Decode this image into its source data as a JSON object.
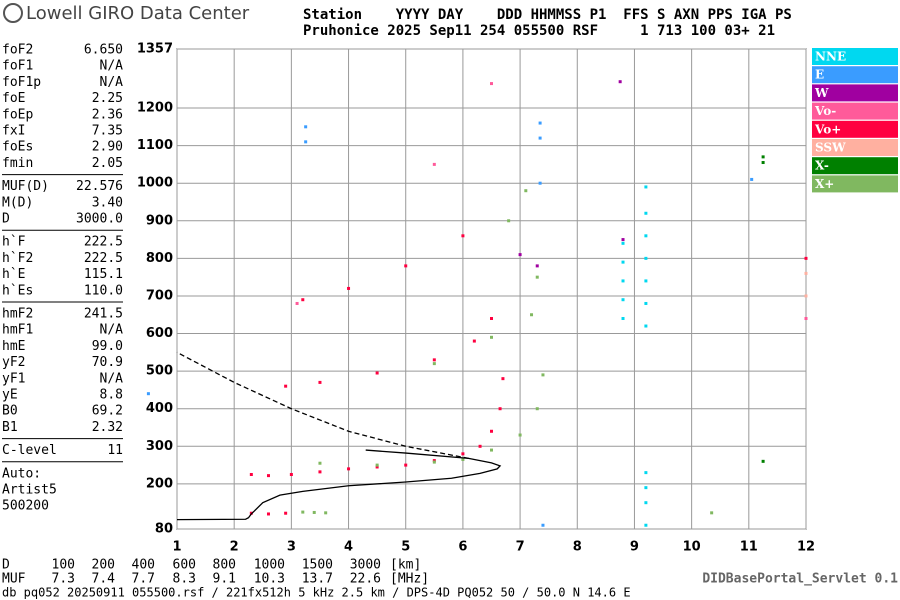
{
  "header": {
    "logo": "Lowell GIRO Data Center",
    "line1": "Station    YYYY DAY    DDD HHMMSS P1  FFS S AXN PPS IGA PS",
    "line2": "Pruhonice 2025 Sep11 254 055500 RSF     1 713 100 03+ 21"
  },
  "parameters": [
    [
      [
        "foF2",
        "6.650"
      ],
      [
        "foF1",
        "N/A"
      ],
      [
        "foF1p",
        "N/A"
      ],
      [
        "foE",
        "2.25"
      ],
      [
        "foEp",
        "2.36"
      ],
      [
        "fxI",
        "7.35"
      ],
      [
        "foEs",
        "2.90"
      ],
      [
        "fmin",
        "2.05"
      ]
    ],
    [
      [
        "MUF(D)",
        "22.576"
      ],
      [
        "M(D)",
        "3.40"
      ],
      [
        "D",
        "3000.0"
      ]
    ],
    [
      [
        "h`F",
        "222.5"
      ],
      [
        "h`F2",
        "222.5"
      ],
      [
        "h`E",
        "115.1"
      ],
      [
        "h`Es",
        "110.0"
      ]
    ],
    [
      [
        "hmF2",
        "241.5"
      ],
      [
        "hmF1",
        "N/A"
      ],
      [
        "hmE",
        "99.0"
      ],
      [
        "yF2",
        "70.9"
      ],
      [
        "yF1",
        "N/A"
      ],
      [
        "yE",
        "8.8"
      ],
      [
        "B0",
        "69.2"
      ],
      [
        "B1",
        "2.32"
      ]
    ],
    [
      [
        "C-level",
        "11"
      ]
    ]
  ],
  "autoscaling": [
    "Auto:",
    "Artist5",
    "500200"
  ],
  "distance_table": {
    "d_label": "D",
    "distances": [
      100,
      200,
      400,
      600,
      800,
      1000,
      1500,
      3000
    ],
    "d_unit": "[km]",
    "muf_label": "MUF",
    "muf": [
      7.3,
      7.4,
      7.7,
      8.3,
      9.1,
      10.3,
      13.7,
      22.6
    ],
    "muf_unit": "[MHz]"
  },
  "footer": "db pq052 20250911 055500.rsf / 221fx512h 5 kHz 2.5 km / DPS-4D PQ052 50 / 50.0 N 14.6 E",
  "servlet": "DIDBasePortal_Servlet 0.1",
  "chart_data": {
    "type": "scatter",
    "grid": true,
    "legend": "right",
    "xlim": [
      1,
      12
    ],
    "xticks": [
      1,
      2,
      3,
      4,
      5,
      6,
      7,
      8,
      9,
      10,
      11,
      12
    ],
    "ylim": [
      80,
      1357
    ],
    "yticks": [
      80,
      200,
      300,
      400,
      500,
      600,
      700,
      800,
      900,
      1000,
      1100,
      1200,
      1357
    ],
    "series": [
      {
        "name": "NNE",
        "color": "#00d8f0",
        "x": [
          8.8,
          8.8,
          8.8,
          8.8,
          8.8,
          9.2,
          9.2,
          9.2,
          9.2,
          9.2,
          9.2,
          9.2,
          9.2,
          9.2,
          9.2,
          9.2
        ],
        "values": [
          640,
          690,
          740,
          790,
          840,
          620,
          680,
          740,
          800,
          860,
          920,
          990,
          150,
          190,
          230,
          90
        ]
      },
      {
        "name": "E",
        "color": "#3a9cff",
        "x": [
          3.25,
          3.25,
          7.35,
          7.35,
          7.35,
          7.4,
          11.05,
          0.5
        ],
        "values": [
          1110,
          1150,
          1120,
          1160,
          1000,
          90,
          1010,
          440
        ]
      },
      {
        "name": "W",
        "color": "#a000a0",
        "x": [
          8.8,
          7.0,
          7.3,
          8.75
        ],
        "values": [
          850,
          810,
          780,
          1270
        ]
      },
      {
        "name": "Vo-",
        "color": "#ff5a9a",
        "x": [
          3.1,
          5.5,
          6.5,
          12
        ],
        "values": [
          680,
          1050,
          1265,
          640
        ]
      },
      {
        "name": "Vo+",
        "color": "#ff0040",
        "x": [
          2.3,
          2.6,
          3.0,
          3.5,
          4.0,
          4.5,
          5.0,
          5.5,
          6.0,
          6.3,
          6.5,
          6.65,
          6.7,
          2.9,
          3.5,
          4.5,
          5.5,
          6.2,
          6.5,
          3.2,
          4.0,
          5.0,
          6.0,
          2.3,
          2.6,
          2.9,
          12
        ],
        "values": [
          225,
          222,
          225,
          232,
          240,
          245,
          250,
          262,
          280,
          300,
          340,
          400,
          480,
          460,
          470,
          495,
          530,
          580,
          640,
          690,
          720,
          780,
          860,
          122,
          120,
          122,
          800
        ]
      },
      {
        "name": "SSW",
        "color": "#ffb0a0",
        "x": [
          12,
          12
        ],
        "values": [
          700,
          760
        ]
      },
      {
        "name": "X-",
        "color": "#008000",
        "x": [
          11.25,
          11.25,
          11.25
        ],
        "values": [
          1070,
          1055,
          260
        ]
      },
      {
        "name": "X+",
        "color": "#80b860",
        "x": [
          3.5,
          4.5,
          5.5,
          6.0,
          6.5,
          7.0,
          7.3,
          7.4,
          5.5,
          6.5,
          7.2,
          7.3,
          3.2,
          3.4,
          3.6,
          10.35,
          6.8,
          7.1
        ],
        "values": [
          255,
          250,
          258,
          265,
          290,
          330,
          400,
          490,
          520,
          590,
          650,
          750,
          125,
          124,
          123,
          123,
          900,
          980
        ]
      },
      {
        "line": "solid",
        "color": "#000",
        "x": [
          1.0,
          2.2,
          2.25,
          2.3,
          2.5,
          2.8,
          3.2,
          4.0,
          5.0,
          5.8,
          6.3,
          6.6,
          6.65,
          6.5,
          6.1,
          5.0,
          4.3
        ],
        "values": [
          105,
          106,
          110,
          120,
          150,
          170,
          180,
          195,
          205,
          215,
          228,
          240,
          248,
          256,
          268,
          282,
          290
        ]
      },
      {
        "line": "dashed",
        "color": "#000",
        "x": [
          6.1,
          5.0,
          4.0,
          3.0,
          2.0,
          1.0
        ],
        "values": [
          268,
          300,
          340,
          400,
          470,
          550
        ]
      }
    ]
  }
}
